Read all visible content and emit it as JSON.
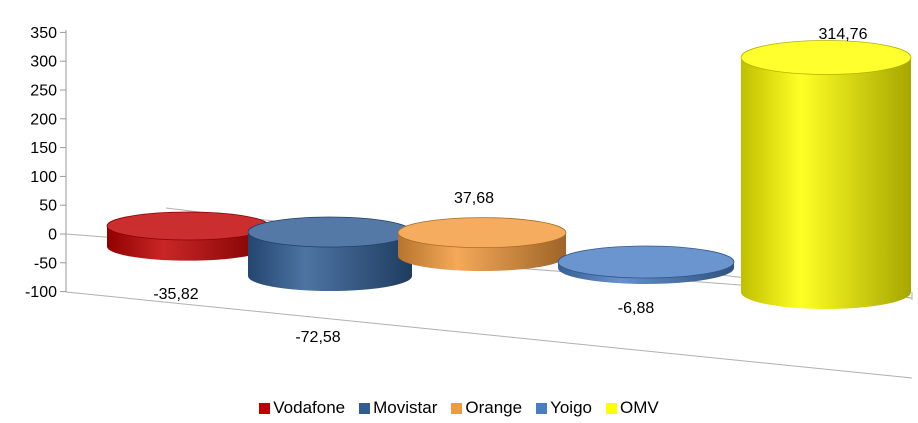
{
  "chart_data": {
    "type": "bar",
    "title": "",
    "xlabel": "",
    "ylabel": "",
    "ylim": [
      -100,
      350
    ],
    "yticks": [
      "350",
      "300",
      "250",
      "200",
      "150",
      "100",
      "50",
      "0",
      "-50",
      "-100"
    ],
    "legend_position": "bottom",
    "series": [
      {
        "name": "Vodafone",
        "value": -35.82,
        "label": "-35,82",
        "color": "#c00000"
      },
      {
        "name": "Movistar",
        "value": -72.58,
        "label": "-72,58",
        "color": "#2e5c93"
      },
      {
        "name": "Orange",
        "value": 37.68,
        "label": "37,68",
        "color": "#f39a3c"
      },
      {
        "name": "Yoigo",
        "value": -6.88,
        "label": "-6,88",
        "color": "#4a7ec4"
      },
      {
        "name": "OMV",
        "value": 314.76,
        "label": "314,76",
        "color": "#ffff00"
      }
    ]
  }
}
